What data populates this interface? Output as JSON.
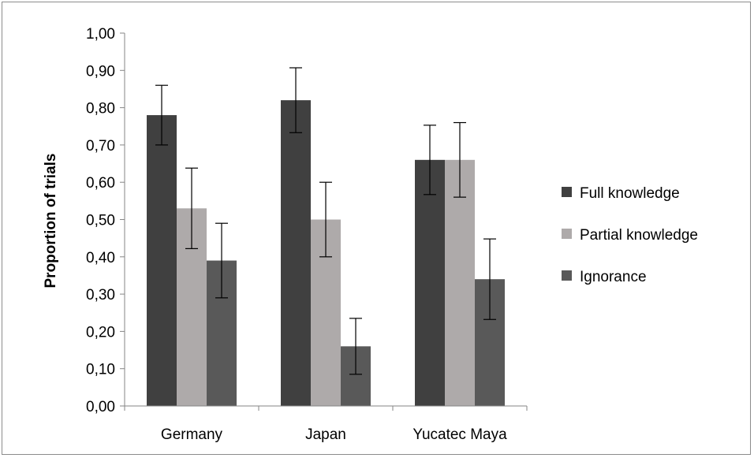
{
  "chart_data": {
    "type": "bar",
    "title": "",
    "xlabel": "",
    "ylabel": "Proportion of trials",
    "ylim": [
      0,
      1
    ],
    "ytick_step": 0.1,
    "ytick_labels": [
      "0,00",
      "0,10",
      "0,20",
      "0,30",
      "0,40",
      "0,50",
      "0,60",
      "0,70",
      "0,80",
      "0,90",
      "1,00"
    ],
    "categories": [
      "Germany",
      "Japan",
      "Yucatec Maya"
    ],
    "legend_position": "right",
    "grid": false,
    "series": [
      {
        "name": "Full knowledge",
        "color": "#404040",
        "values": [
          0.78,
          0.82,
          0.66
        ],
        "error": [
          0.08,
          0.087,
          0.093
        ]
      },
      {
        "name": "Partial knowledge",
        "color": "#aeaaaa",
        "values": [
          0.53,
          0.5,
          0.66
        ],
        "error": [
          0.108,
          0.1,
          0.1
        ]
      },
      {
        "name": "Ignorance",
        "color": "#595959",
        "values": [
          0.39,
          0.16,
          0.34
        ],
        "error": [
          0.1,
          0.075,
          0.108
        ]
      }
    ]
  }
}
